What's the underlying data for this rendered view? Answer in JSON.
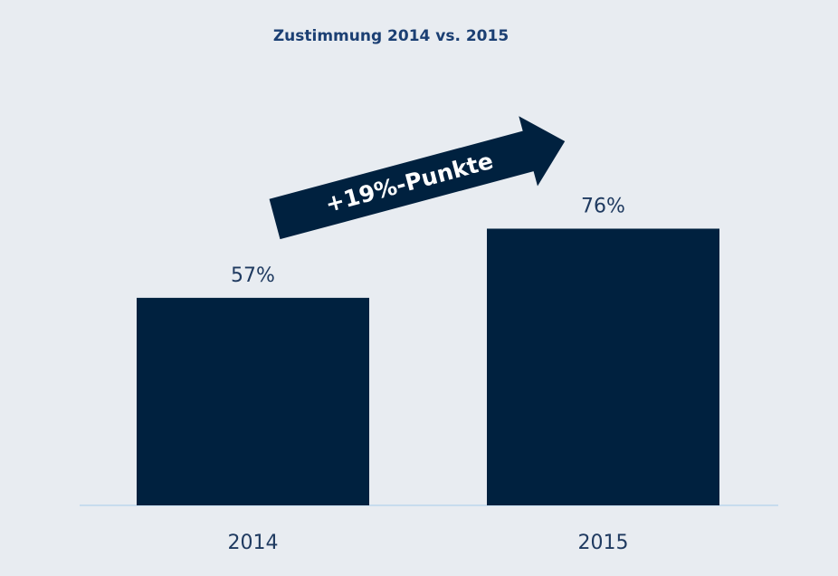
{
  "chart_data": {
    "type": "bar",
    "title": "Zustimmung 2014 vs. 2015",
    "categories": [
      "2014",
      "2015"
    ],
    "values": [
      57,
      76
    ],
    "value_labels": [
      "57%",
      "76%"
    ],
    "color": "#00213f",
    "annotation": "+19%-Punkte"
  }
}
